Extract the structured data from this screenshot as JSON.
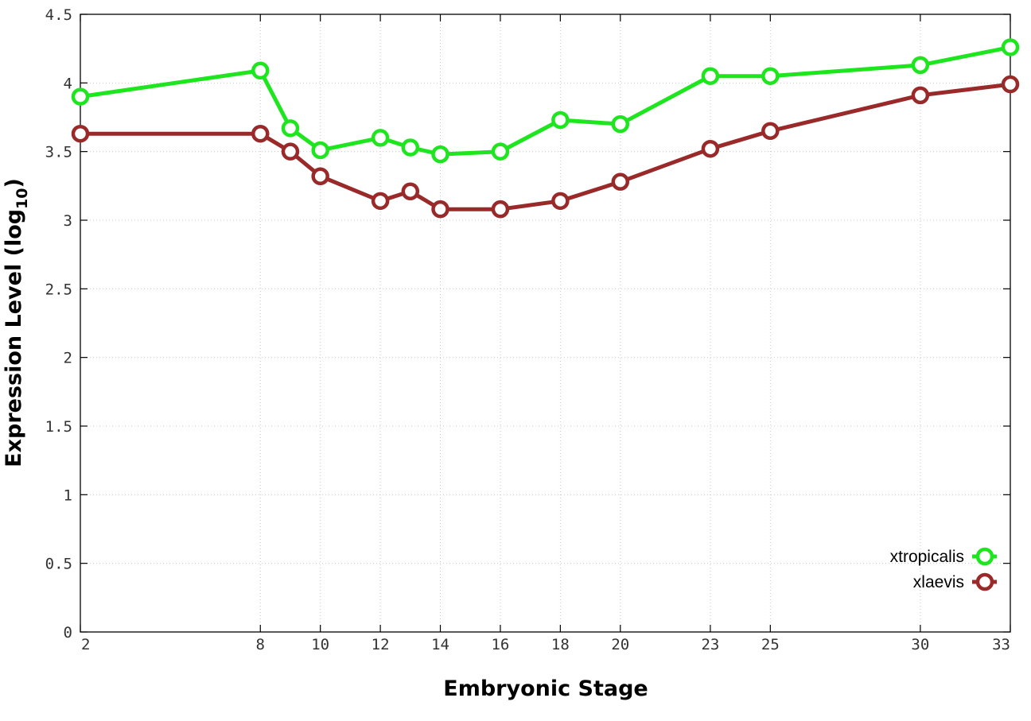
{
  "chart_data": {
    "type": "line",
    "title": "",
    "xlabel": "Embryonic Stage",
    "ylabel": "Expression Level (log",
    "ylabel_sub": "10",
    "ylabel_close": ")",
    "x": [
      2,
      8,
      9,
      10,
      12,
      13,
      14,
      16,
      18,
      20,
      23,
      25,
      30,
      33
    ],
    "xticks": [
      2,
      8,
      10,
      12,
      14,
      16,
      18,
      20,
      23,
      25,
      30,
      33
    ],
    "yticks": [
      "0",
      "0.5",
      "1",
      "1.5",
      "2",
      "2.5",
      "3",
      "3.5",
      "4",
      "4.5"
    ],
    "xlim": [
      2,
      33
    ],
    "ylim": [
      0,
      4.5
    ],
    "grid": true,
    "legend_position": "bottom-right",
    "series": [
      {
        "name": "xtropicalis",
        "color": "#1ee61e",
        "values": [
          3.9,
          4.09,
          3.67,
          3.51,
          3.6,
          3.53,
          3.48,
          3.5,
          3.73,
          3.7,
          4.05,
          4.05,
          4.13,
          4.26
        ]
      },
      {
        "name": "xlaevis",
        "color": "#9a2a2a",
        "values": [
          3.63,
          3.63,
          3.5,
          3.32,
          3.14,
          3.21,
          3.08,
          3.08,
          3.14,
          3.28,
          3.52,
          3.65,
          3.91,
          3.99
        ]
      }
    ]
  }
}
